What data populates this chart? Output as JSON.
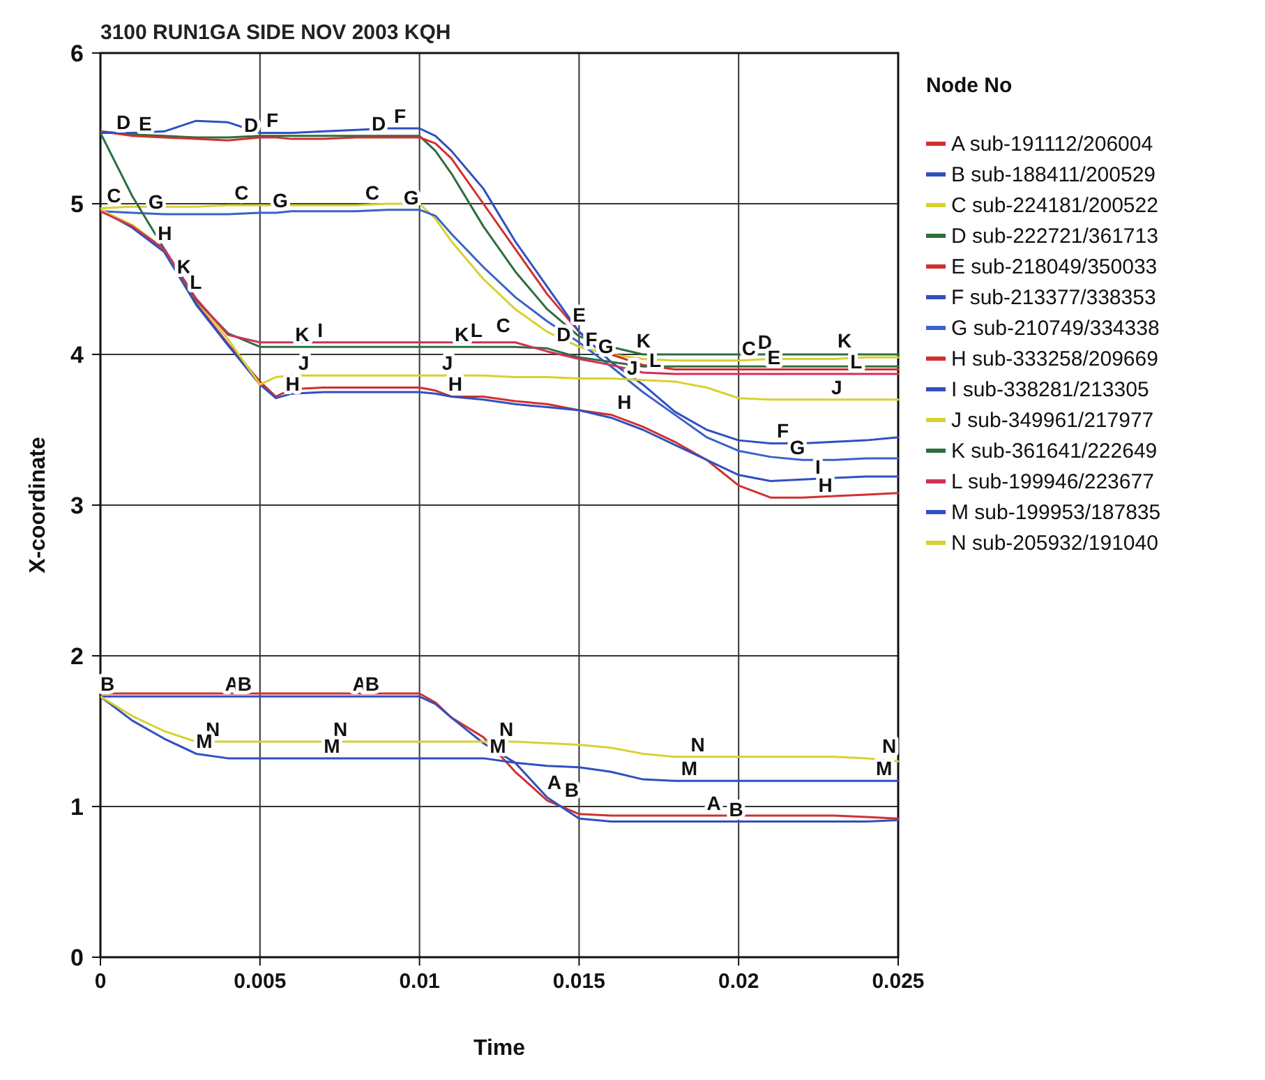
{
  "chart_data": {
    "type": "line",
    "title": "3100 RUN1GA SIDE NOV 2003 KQH",
    "xlabel": "Time",
    "ylabel": "X-coordinate",
    "legend_title": "Node No",
    "legend": "right",
    "grid": true,
    "marker": "none",
    "line_style": "solid",
    "xlim": [
      0,
      0.025
    ],
    "xticks": [
      0,
      0.005,
      0.01,
      0.015,
      0.02,
      0.025
    ],
    "ylim": [
      0,
      6
    ],
    "yticks": [
      0,
      1,
      2,
      3,
      4,
      5,
      6
    ],
    "x": [
      0,
      0.001,
      0.002,
      0.003,
      0.004,
      0.005,
      0.0055,
      0.006,
      0.007,
      0.008,
      0.009,
      0.01,
      0.0105,
      0.011,
      0.012,
      0.013,
      0.014,
      0.015,
      0.016,
      0.017,
      0.018,
      0.019,
      0.02,
      0.021,
      0.022,
      0.023,
      0.024,
      0.025
    ],
    "series": [
      {
        "name": "A sub-191112/206004",
        "color": "#d03030",
        "values": [
          1.75,
          1.75,
          1.75,
          1.75,
          1.75,
          1.75,
          1.75,
          1.75,
          1.75,
          1.75,
          1.75,
          1.75,
          1.69,
          1.59,
          1.46,
          1.23,
          1.04,
          0.95,
          0.94,
          0.94,
          0.94,
          0.94,
          0.94,
          0.94,
          0.94,
          0.94,
          0.93,
          0.92
        ]
      },
      {
        "name": "B sub-188411/200529",
        "color": "#3050c0",
        "values": [
          1.73,
          1.73,
          1.73,
          1.73,
          1.73,
          1.73,
          1.73,
          1.73,
          1.73,
          1.73,
          1.73,
          1.73,
          1.68,
          1.59,
          1.42,
          1.29,
          1.06,
          0.92,
          0.9,
          0.9,
          0.9,
          0.9,
          0.9,
          0.9,
          0.9,
          0.9,
          0.9,
          0.91
        ]
      },
      {
        "name": "C sub-224181/200522",
        "color": "#d8d030",
        "values": [
          4.97,
          4.98,
          4.98,
          4.98,
          4.99,
          4.99,
          4.99,
          4.99,
          4.99,
          4.99,
          5.0,
          5.0,
          4.9,
          4.75,
          4.5,
          4.3,
          4.15,
          4.05,
          4.0,
          3.97,
          3.96,
          3.96,
          3.96,
          3.97,
          3.97,
          3.97,
          3.98,
          3.98
        ]
      },
      {
        "name": "D sub-222721/361713",
        "color": "#2e6e3e",
        "values": [
          5.48,
          5.46,
          5.45,
          5.44,
          5.44,
          5.45,
          5.45,
          5.45,
          5.45,
          5.45,
          5.45,
          5.45,
          5.35,
          5.2,
          4.85,
          4.55,
          4.3,
          4.12,
          4.05,
          4.0,
          4.0,
          4.0,
          4.0,
          4.0,
          4.0,
          4.0,
          4.0,
          4.0
        ]
      },
      {
        "name": "E sub-218049/350033",
        "color": "#d03030",
        "values": [
          5.48,
          5.45,
          5.44,
          5.43,
          5.42,
          5.44,
          5.44,
          5.43,
          5.43,
          5.44,
          5.44,
          5.44,
          5.4,
          5.3,
          5.0,
          4.7,
          4.4,
          4.15,
          4.0,
          3.93,
          3.9,
          3.9,
          3.9,
          3.9,
          3.9,
          3.9,
          3.9,
          3.9
        ]
      },
      {
        "name": "F sub-213377/338353",
        "color": "#3050c0",
        "values": [
          5.47,
          5.47,
          5.48,
          5.55,
          5.54,
          5.47,
          5.47,
          5.47,
          5.48,
          5.49,
          5.5,
          5.5,
          5.45,
          5.35,
          5.1,
          4.75,
          4.45,
          4.15,
          3.95,
          3.8,
          3.62,
          3.5,
          3.43,
          3.41,
          3.41,
          3.42,
          3.43,
          3.45
        ]
      },
      {
        "name": "G sub-210749/334338",
        "color": "#3a62c8",
        "values": [
          4.95,
          4.94,
          4.93,
          4.93,
          4.93,
          4.94,
          4.94,
          4.95,
          4.95,
          4.95,
          4.96,
          4.96,
          4.92,
          4.8,
          4.58,
          4.38,
          4.22,
          4.08,
          3.92,
          3.75,
          3.6,
          3.45,
          3.36,
          3.32,
          3.3,
          3.3,
          3.31,
          3.31
        ]
      },
      {
        "name": "H sub-333258/209669",
        "color": "#d03030",
        "values": [
          4.96,
          4.85,
          4.69,
          4.34,
          4.07,
          3.82,
          3.72,
          3.77,
          3.78,
          3.78,
          3.78,
          3.78,
          3.76,
          3.72,
          3.72,
          3.69,
          3.67,
          3.63,
          3.6,
          3.52,
          3.42,
          3.3,
          3.13,
          3.05,
          3.05,
          3.06,
          3.07,
          3.08
        ]
      },
      {
        "name": "I sub-338281/213305",
        "color": "#3050c0",
        "values": [
          4.96,
          4.84,
          4.68,
          4.33,
          4.06,
          3.8,
          3.71,
          3.74,
          3.75,
          3.75,
          3.75,
          3.75,
          3.74,
          3.72,
          3.7,
          3.67,
          3.65,
          3.63,
          3.58,
          3.5,
          3.4,
          3.3,
          3.2,
          3.16,
          3.17,
          3.18,
          3.19,
          3.19
        ]
      },
      {
        "name": "J sub-349961/217977",
        "color": "#d8d030",
        "values": [
          4.96,
          4.86,
          4.7,
          4.36,
          4.1,
          3.8,
          3.85,
          3.86,
          3.86,
          3.86,
          3.86,
          3.86,
          3.86,
          3.86,
          3.86,
          3.85,
          3.85,
          3.84,
          3.84,
          3.83,
          3.82,
          3.78,
          3.71,
          3.7,
          3.7,
          3.7,
          3.7,
          3.7
        ]
      },
      {
        "name": "K sub-361641/222649",
        "color": "#2e6e3e",
        "values": [
          5.47,
          5.05,
          4.7,
          4.36,
          4.14,
          4.05,
          4.05,
          4.05,
          4.05,
          4.05,
          4.05,
          4.05,
          4.05,
          4.05,
          4.05,
          4.05,
          4.04,
          3.98,
          3.95,
          3.92,
          3.92,
          3.92,
          3.92,
          3.92,
          3.92,
          3.92,
          3.92,
          3.92
        ]
      },
      {
        "name": "L sub-199946/223677",
        "color": "#d03058",
        "values": [
          4.95,
          4.85,
          4.7,
          4.37,
          4.13,
          4.08,
          4.08,
          4.08,
          4.08,
          4.08,
          4.08,
          4.08,
          4.08,
          4.08,
          4.08,
          4.08,
          4.02,
          3.97,
          3.93,
          3.88,
          3.87,
          3.87,
          3.87,
          3.87,
          3.87,
          3.87,
          3.87,
          3.87
        ]
      },
      {
        "name": "M sub-199953/187835",
        "color": "#3050c0",
        "values": [
          1.73,
          1.57,
          1.45,
          1.35,
          1.32,
          1.32,
          1.32,
          1.32,
          1.32,
          1.32,
          1.32,
          1.32,
          1.32,
          1.32,
          1.32,
          1.29,
          1.27,
          1.26,
          1.23,
          1.18,
          1.17,
          1.17,
          1.17,
          1.17,
          1.17,
          1.17,
          1.17,
          1.17
        ]
      },
      {
        "name": "N sub-205932/191040",
        "color": "#d8d030",
        "values": [
          1.73,
          1.6,
          1.5,
          1.43,
          1.43,
          1.43,
          1.43,
          1.43,
          1.43,
          1.43,
          1.43,
          1.43,
          1.43,
          1.43,
          1.43,
          1.43,
          1.42,
          1.41,
          1.39,
          1.35,
          1.33,
          1.33,
          1.33,
          1.33,
          1.33,
          1.33,
          1.32,
          1.3
        ]
      }
    ],
    "annotations": [
      {
        "text": "B",
        "x": 0,
        "y": 1.73
      },
      {
        "text": "A",
        "x": 0.0039,
        "y": 1.73
      },
      {
        "text": "B",
        "x": 0.0043,
        "y": 1.73
      },
      {
        "text": "A",
        "x": 0.0079,
        "y": 1.73
      },
      {
        "text": "B",
        "x": 0.0083,
        "y": 1.73
      },
      {
        "text": "A",
        "x": 0.014,
        "y": 1.08
      },
      {
        "text": "B",
        "x": 0.01455,
        "y": 1.03
      },
      {
        "text": "A",
        "x": 0.019,
        "y": 0.94
      },
      {
        "text": "B",
        "x": 0.0197,
        "y": 0.9
      },
      {
        "text": "N",
        "x": 0.0033,
        "y": 1.43
      },
      {
        "text": "N",
        "x": 0.0073,
        "y": 1.43
      },
      {
        "text": "N",
        "x": 0.0125,
        "y": 1.43
      },
      {
        "text": "N",
        "x": 0.0185,
        "y": 1.33
      },
      {
        "text": "N",
        "x": 0.0245,
        "y": 1.32
      },
      {
        "text": "M",
        "x": 0.003,
        "y": 1.35
      },
      {
        "text": "M",
        "x": 0.007,
        "y": 1.32
      },
      {
        "text": "M",
        "x": 0.0122,
        "y": 1.32
      },
      {
        "text": "M",
        "x": 0.0182,
        "y": 1.17
      },
      {
        "text": "M",
        "x": 0.0243,
        "y": 1.17
      },
      {
        "text": "D",
        "x": 0.0005,
        "y": 5.46
      },
      {
        "text": "E",
        "x": 0.0012,
        "y": 5.45
      },
      {
        "text": "D",
        "x": 0.0045,
        "y": 5.44
      },
      {
        "text": "F",
        "x": 0.0052,
        "y": 5.47
      },
      {
        "text": "D",
        "x": 0.0085,
        "y": 5.45
      },
      {
        "text": "F",
        "x": 0.0092,
        "y": 5.5
      },
      {
        "text": "C",
        "x": 0.0002,
        "y": 4.97
      },
      {
        "text": "G",
        "x": 0.0015,
        "y": 4.93
      },
      {
        "text": "C",
        "x": 0.0042,
        "y": 4.99
      },
      {
        "text": "G",
        "x": 0.0054,
        "y": 4.94
      },
      {
        "text": "C",
        "x": 0.0083,
        "y": 4.99
      },
      {
        "text": "G",
        "x": 0.0095,
        "y": 4.96
      },
      {
        "text": "H",
        "x": 0.0018,
        "y": 4.72
      },
      {
        "text": "K",
        "x": 0.0024,
        "y": 4.5
      },
      {
        "text": "L",
        "x": 0.0028,
        "y": 4.4
      },
      {
        "text": "K",
        "x": 0.0061,
        "y": 4.05
      },
      {
        "text": "I",
        "x": 0.0068,
        "y": 4.08
      },
      {
        "text": "K",
        "x": 0.0111,
        "y": 4.05
      },
      {
        "text": "L",
        "x": 0.0116,
        "y": 4.08
      },
      {
        "text": "H",
        "x": 0.0058,
        "y": 3.72
      },
      {
        "text": "J",
        "x": 0.0062,
        "y": 3.86
      },
      {
        "text": "H",
        "x": 0.0109,
        "y": 3.72
      },
      {
        "text": "J",
        "x": 0.0107,
        "y": 3.86
      },
      {
        "text": "C",
        "x": 0.0124,
        "y": 4.11
      },
      {
        "text": "D",
        "x": 0.0143,
        "y": 4.05
      },
      {
        "text": "E",
        "x": 0.0148,
        "y": 4.18
      },
      {
        "text": "F",
        "x": 0.0152,
        "y": 4.02
      },
      {
        "text": "G",
        "x": 0.0156,
        "y": 3.97
      },
      {
        "text": "K",
        "x": 0.0168,
        "y": 4.01
      },
      {
        "text": "L",
        "x": 0.0172,
        "y": 3.88
      },
      {
        "text": "J",
        "x": 0.0165,
        "y": 3.83
      },
      {
        "text": "H",
        "x": 0.0162,
        "y": 3.6
      },
      {
        "text": "C",
        "x": 0.0201,
        "y": 3.96
      },
      {
        "text": "D",
        "x": 0.0206,
        "y": 4.0
      },
      {
        "text": "E",
        "x": 0.0209,
        "y": 3.9
      },
      {
        "text": "K",
        "x": 0.0231,
        "y": 4.01
      },
      {
        "text": "L",
        "x": 0.0235,
        "y": 3.87
      },
      {
        "text": "J",
        "x": 0.0229,
        "y": 3.7
      },
      {
        "text": "F",
        "x": 0.0212,
        "y": 3.41
      },
      {
        "text": "G",
        "x": 0.0216,
        "y": 3.3
      },
      {
        "text": "I",
        "x": 0.0224,
        "y": 3.17
      },
      {
        "text": "H",
        "x": 0.0225,
        "y": 3.05
      }
    ]
  }
}
